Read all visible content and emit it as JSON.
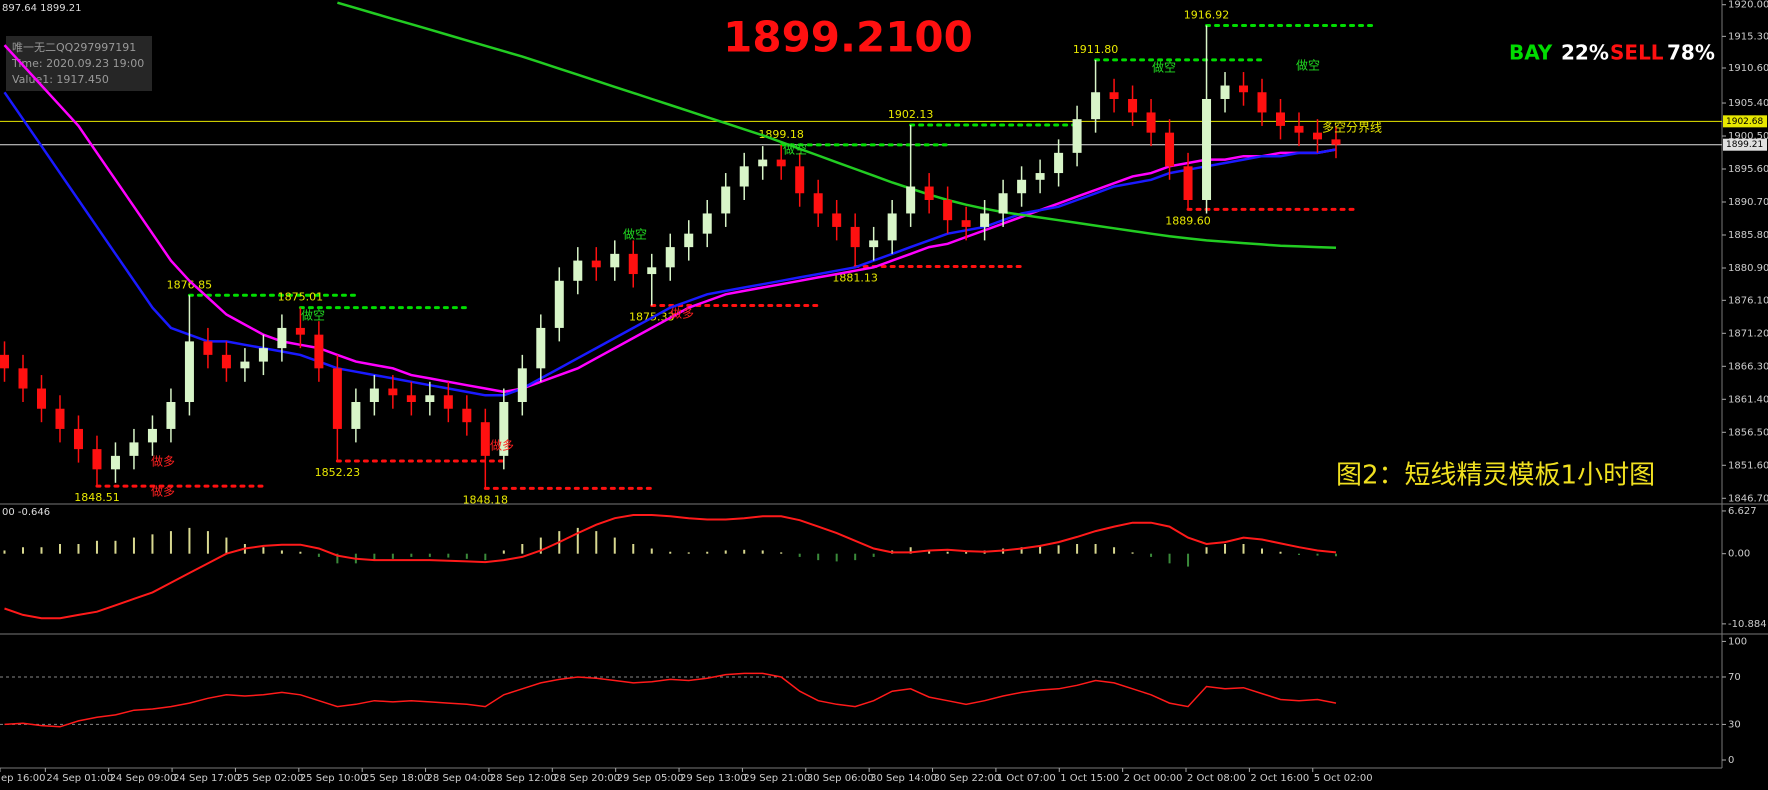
{
  "chart_data": {
    "type": "candlestick",
    "header": "897.64 1899.21",
    "title": "1899.2100",
    "info": [
      "唯一无二QQ297997191",
      "Time: 2020.09.23 19:00",
      "Value1: 1917.450"
    ],
    "signal": [
      {
        "text": "BAY",
        "color": "#00dd00"
      },
      {
        "text": "22%",
        "color": "#ffffff"
      },
      {
        "text": "SELL",
        "color": "#ff1010"
      },
      {
        "text": "78%",
        "color": "#ffffff"
      }
    ],
    "caption": "图2：短线精灵模板1小时图",
    "bull_color": "#d8f5c8",
    "bear_color": "#ff1010",
    "open": [
      1868,
      1866,
      1863,
      1860,
      1857,
      1854,
      1851,
      1853,
      1855,
      1857,
      1861,
      1870,
      1868,
      1866,
      1867,
      1869,
      1872,
      1871,
      1866,
      1857,
      1861,
      1863,
      1862,
      1861,
      1862,
      1860,
      1858,
      1853,
      1861,
      1866,
      1872,
      1879,
      1882,
      1881,
      1883,
      1880,
      1881,
      1884,
      1886,
      1889,
      1893,
      1896,
      1897,
      1896,
      1892,
      1889,
      1887,
      1884,
      1885,
      1889,
      1893,
      1891,
      1888,
      1887,
      1889,
      1892,
      1894,
      1895,
      1898,
      1903,
      1907,
      1906,
      1904,
      1901,
      1896,
      1891,
      1906,
      1908,
      1907,
      1904,
      1902,
      1901,
      1900
    ],
    "high": [
      1870,
      1868,
      1865,
      1862,
      1859,
      1856,
      1855,
      1857,
      1859,
      1863,
      1876.85,
      1872,
      1870,
      1869,
      1871,
      1874,
      1875.01,
      1873,
      1868,
      1863,
      1865,
      1865,
      1864,
      1864,
      1864,
      1862,
      1860,
      1863,
      1868,
      1874,
      1881,
      1884,
      1884,
      1885,
      1885,
      1883,
      1886,
      1888,
      1891,
      1895,
      1898,
      1899,
      1899.18,
      1898,
      1894,
      1891,
      1889,
      1887,
      1891,
      1902.13,
      1895,
      1893,
      1890,
      1891,
      1894,
      1896,
      1897,
      1900,
      1905,
      1911.8,
      1909,
      1908,
      1906,
      1903,
      1898,
      1916.92,
      1910,
      1910,
      1909,
      1906,
      1904,
      1903,
      1902
    ],
    "low": [
      1864,
      1861,
      1858,
      1855,
      1852,
      1848.51,
      1849,
      1851,
      1853,
      1855,
      1859,
      1866,
      1864,
      1864,
      1865,
      1867,
      1869,
      1864,
      1852.23,
      1855,
      1859,
      1860,
      1859,
      1859,
      1858,
      1856,
      1848.18,
      1851,
      1859,
      1864,
      1870,
      1877,
      1879,
      1879,
      1878,
      1875.33,
      1879,
      1882,
      1884,
      1887,
      1891,
      1894,
      1894,
      1890,
      1887,
      1885,
      1881.13,
      1882,
      1883,
      1887,
      1889,
      1886,
      1885,
      1885,
      1887,
      1890,
      1892,
      1893,
      1896,
      1901,
      1904,
      1902,
      1899,
      1894,
      1889.6,
      1889,
      1904,
      1905,
      1902,
      1900,
      1899,
      1898,
      1897.21
    ],
    "close": [
      1866,
      1863,
      1860,
      1857,
      1854,
      1851,
      1853,
      1855,
      1857,
      1861,
      1870,
      1868,
      1866,
      1867,
      1869,
      1872,
      1871,
      1866,
      1857,
      1861,
      1863,
      1862,
      1861,
      1862,
      1860,
      1858,
      1853,
      1861,
      1866,
      1872,
      1879,
      1882,
      1881,
      1883,
      1880,
      1881,
      1884,
      1886,
      1889,
      1893,
      1896,
      1897,
      1896,
      1892,
      1889,
      1887,
      1884,
      1885,
      1889,
      1893,
      1891,
      1888,
      1887,
      1889,
      1892,
      1894,
      1895,
      1898,
      1903,
      1907,
      1906,
      1904,
      1901,
      1896,
      1891,
      1906,
      1908,
      1907,
      1904,
      1902,
      1901,
      1900,
      1899.21
    ],
    "high_labels": [
      null,
      null,
      null,
      null,
      null,
      null,
      null,
      null,
      null,
      null,
      "1876.85",
      null,
      null,
      null,
      null,
      null,
      "1875.01",
      null,
      null,
      null,
      null,
      null,
      null,
      null,
      null,
      null,
      null,
      null,
      null,
      null,
      null,
      null,
      null,
      null,
      null,
      null,
      null,
      null,
      null,
      null,
      null,
      null,
      "1899.18",
      null,
      null,
      null,
      null,
      null,
      null,
      "1902.13",
      null,
      null,
      null,
      null,
      null,
      null,
      null,
      null,
      null,
      "1911.80",
      null,
      null,
      null,
      null,
      null,
      "1916.92",
      null,
      null,
      null,
      null,
      null,
      null,
      null
    ],
    "low_labels": [
      null,
      null,
      null,
      null,
      null,
      "1848.51",
      null,
      null,
      null,
      null,
      null,
      null,
      null,
      null,
      null,
      null,
      null,
      null,
      "1852.23",
      null,
      null,
      null,
      null,
      null,
      null,
      null,
      "1848.18",
      null,
      null,
      null,
      null,
      null,
      null,
      null,
      null,
      "1875.33",
      null,
      null,
      null,
      null,
      null,
      null,
      null,
      null,
      null,
      null,
      "1881.13",
      null,
      null,
      null,
      null,
      null,
      null,
      null,
      null,
      null,
      null,
      null,
      null,
      null,
      null,
      null,
      null,
      null,
      "1889.60",
      null,
      null,
      null,
      null,
      null,
      null,
      null,
      null
    ],
    "level_colors": {
      "high": "#00dd00",
      "low": "#ff1010"
    },
    "overlays": [
      {
        "color": "#ff00ff",
        "values": [
          1914,
          1911,
          1908,
          1905,
          1902,
          1898,
          1894,
          1890,
          1886,
          1882,
          1879,
          1876.5,
          1874,
          1872.5,
          1871,
          1870,
          1869.5,
          1869,
          1868,
          1867,
          1866.5,
          1866,
          1865,
          1864.5,
          1864,
          1863.5,
          1863,
          1862.5,
          1863,
          1864,
          1865,
          1866,
          1867.5,
          1869,
          1870.5,
          1872,
          1873.5,
          1875,
          1876,
          1877,
          1877.5,
          1878,
          1878.5,
          1879,
          1879.5,
          1880,
          1880.5,
          1881,
          1882,
          1883,
          1884,
          1884.5,
          1885.5,
          1886.5,
          1887.5,
          1888.5,
          1889.5,
          1890.5,
          1891.5,
          1892.5,
          1893.5,
          1894.5,
          1895,
          1896,
          1896.5,
          1897,
          1897,
          1897.5,
          1897.5,
          1898,
          1898,
          1898,
          1898.5
        ]
      },
      {
        "color": "#1a1aff",
        "values": [
          1907,
          1903,
          1899,
          1895,
          1891,
          1887,
          1883,
          1879,
          1875,
          1872,
          1871,
          1870,
          1870,
          1869.5,
          1869,
          1868.5,
          1868,
          1867,
          1866,
          1865.5,
          1865,
          1864.5,
          1864,
          1863.5,
          1863,
          1862.5,
          1862,
          1862,
          1863,
          1864.5,
          1866,
          1867.5,
          1869,
          1870.5,
          1872,
          1873.5,
          1875,
          1876,
          1877,
          1877.5,
          1878,
          1878.5,
          1879,
          1879.5,
          1880,
          1880.5,
          1881,
          1882,
          1883,
          1884,
          1885,
          1886,
          1886.5,
          1887,
          1888,
          1889,
          1889.5,
          1890,
          1891,
          1892,
          1893,
          1893.5,
          1894,
          1895,
          1895.5,
          1896,
          1896.5,
          1897,
          1897.5,
          1897.5,
          1898,
          1898,
          1898.5
        ]
      },
      {
        "color": "#22cc22",
        "values": [
          null,
          null,
          null,
          null,
          null,
          null,
          null,
          null,
          null,
          null,
          null,
          null,
          null,
          null,
          null,
          null,
          null,
          null,
          1920.3,
          1919.5,
          1918.7,
          1917.9,
          1917.1,
          1916.3,
          1915.5,
          1914.7,
          1913.9,
          1913.1,
          1912.3,
          1911.4,
          1910.5,
          1909.6,
          1908.7,
          1907.8,
          1906.9,
          1906,
          1905.1,
          1904.2,
          1903.3,
          1902.4,
          1901.5,
          1900.6,
          1899.6,
          1898.6,
          1897.6,
          1896.6,
          1895.6,
          1894.6,
          1893.6,
          1892.7,
          1891.8,
          1891,
          1890.3,
          1889.7,
          1889.2,
          1888.8,
          1888.4,
          1888,
          1887.6,
          1887.2,
          1886.8,
          1886.4,
          1886,
          1885.6,
          1885.3,
          1885,
          1884.8,
          1884.6,
          1884.4,
          1884.2,
          1884.1,
          1884,
          1883.9
        ]
      }
    ],
    "price_lines": [
      {
        "value": 1902.68,
        "label": "1902.68",
        "color": "#e8e800"
      },
      {
        "value": 1899.21,
        "label": "1899.21",
        "color": "#e0e0e0"
      }
    ],
    "annotations": [
      {
        "text": "做空",
        "color": "#22dd22"
      },
      {
        "text": "做空",
        "color": "#22dd22"
      },
      {
        "text": "做空",
        "color": "#22dd22"
      },
      {
        "text": "做空",
        "color": "#22dd22"
      },
      {
        "text": "做空",
        "color": "#22dd22"
      },
      {
        "text": "做多",
        "color": "#ff2020"
      },
      {
        "text": "做多",
        "color": "#ff2020"
      },
      {
        "text": "做多",
        "color": "#ff2020"
      },
      {
        "text": "做多",
        "color": "#ff2020"
      },
      {
        "text": "多空分界线",
        "color": "#e8e800"
      }
    ],
    "ylim": [
      1846,
      1920.7
    ],
    "yticks": [
      {
        "value": 1920,
        "label": "1920.00"
      },
      {
        "value": 1915.3,
        "label": "1915.30"
      },
      {
        "value": 1910.6,
        "label": "1910.60"
      },
      {
        "value": 1905.4,
        "label": "1905.40"
      },
      {
        "value": 1900.5,
        "label": "1900.50"
      },
      {
        "value": 1895.6,
        "label": "1895.60"
      },
      {
        "value": 1890.7,
        "label": "1890.70"
      },
      {
        "value": 1885.8,
        "label": "1885.80"
      },
      {
        "value": 1880.9,
        "label": "1880.90"
      },
      {
        "value": 1876.1,
        "label": "1876.10"
      },
      {
        "value": 1871.2,
        "label": "1871.20"
      },
      {
        "value": 1866.3,
        "label": "1866.30"
      },
      {
        "value": 1861.4,
        "label": "1861.40"
      },
      {
        "value": 1856.5,
        "label": "1856.50"
      },
      {
        "value": 1851.6,
        "label": "1851.60"
      },
      {
        "value": 1846.7,
        "label": "1846.70"
      }
    ],
    "xtick_labels": [
      "ep 16:00",
      "24 Sep 01:00",
      "24 Sep 09:00",
      "24 Sep 17:00",
      "25 Sep 02:00",
      "25 Sep 10:00",
      "25 Sep 18:00",
      "28 Sep 04:00",
      "28 Sep 12:00",
      "28 Sep 20:00",
      "29 Sep 05:00",
      "29 Sep 13:00",
      "29 Sep 21:00",
      "30 Sep 06:00",
      "30 Sep 14:00",
      "30 Sep 22:00",
      "1 Oct 07:00",
      "1 Oct 15:00",
      "2 Oct 00:00",
      "2 Oct 08:00",
      "2 Oct 16:00",
      "5 Oct 02:00"
    ],
    "macd": {
      "header": "00 -0.646",
      "ylim": [
        -12.3,
        7.55
      ],
      "yticks": [
        6.627,
        {
          "value": 0,
          "label": "0.00"
        },
        -10.884
      ],
      "histogram_colors": {
        "positive": "#d8d890",
        "negative": "#3a8a3a"
      },
      "histogram": [
        0.5,
        1,
        1,
        1.5,
        1.5,
        2,
        2,
        2.5,
        3,
        3.5,
        4,
        3.5,
        2.5,
        1.5,
        1,
        0.5,
        0.3,
        -0.5,
        -1.5,
        -1.5,
        -1,
        -0.8,
        -0.5,
        -0.5,
        -0.6,
        -0.8,
        -1,
        0.5,
        1.5,
        2.5,
        3.5,
        4,
        3.5,
        2.5,
        1.5,
        0.8,
        0.3,
        0.2,
        0.3,
        0.5,
        0.6,
        0.5,
        0.2,
        -0.5,
        -1,
        -1.2,
        -1,
        -0.5,
        0.5,
        1,
        0.5,
        0.3,
        0.3,
        0.5,
        0.8,
        1,
        1.2,
        1.3,
        1.5,
        1.5,
        1,
        0.2,
        -0.5,
        -1.5,
        -2,
        1,
        1.5,
        1.5,
        0.8,
        0.3,
        -0.2,
        -0.3,
        -0.4
      ],
      "signal_color": "#ff1a1a",
      "signal": [
        -8.5,
        -9.5,
        -10,
        -10,
        -9.5,
        -9,
        -8,
        -7,
        -6,
        -4.5,
        -3,
        -1.5,
        0,
        0.8,
        1.2,
        1.4,
        1.4,
        0.8,
        -0.3,
        -0.8,
        -1,
        -1,
        -1,
        -1,
        -1.1,
        -1.2,
        -1.3,
        -1,
        -0.5,
        0.5,
        1.8,
        3.2,
        4.5,
        5.5,
        6,
        6,
        5.8,
        5.5,
        5.3,
        5.3,
        5.5,
        5.8,
        5.8,
        5.2,
        4.2,
        3.2,
        2,
        0.8,
        0.2,
        0.2,
        0.5,
        0.6,
        0.4,
        0.3,
        0.5,
        0.8,
        1.2,
        1.8,
        2.6,
        3.5,
        4.2,
        4.8,
        4.8,
        4.2,
        2.5,
        1.5,
        1.8,
        2.5,
        2.2,
        1.6,
        1,
        0.5,
        0.2
      ]
    },
    "rsi": {
      "ylim": [
        -5.9,
        105.4
      ],
      "yticks": [
        100,
        70,
        30,
        0
      ],
      "dashed_levels": [
        70,
        30
      ],
      "color": "#ff1a1a",
      "values": [
        30,
        31,
        29,
        28,
        33,
        36,
        38,
        42,
        43,
        45,
        48,
        52,
        55,
        54,
        55,
        57,
        55,
        50,
        45,
        47,
        50,
        49,
        50,
        49,
        48,
        47,
        45,
        55,
        60,
        65,
        68,
        70,
        69,
        67,
        65,
        66,
        68,
        67,
        69,
        72,
        73,
        73,
        70,
        58,
        50,
        47,
        45,
        50,
        58,
        60,
        53,
        50,
        47,
        50,
        54,
        57,
        59,
        60,
        63,
        67,
        65,
        60,
        55,
        48,
        45,
        62,
        60,
        61,
        56,
        51,
        50,
        51,
        48
      ]
    }
  }
}
